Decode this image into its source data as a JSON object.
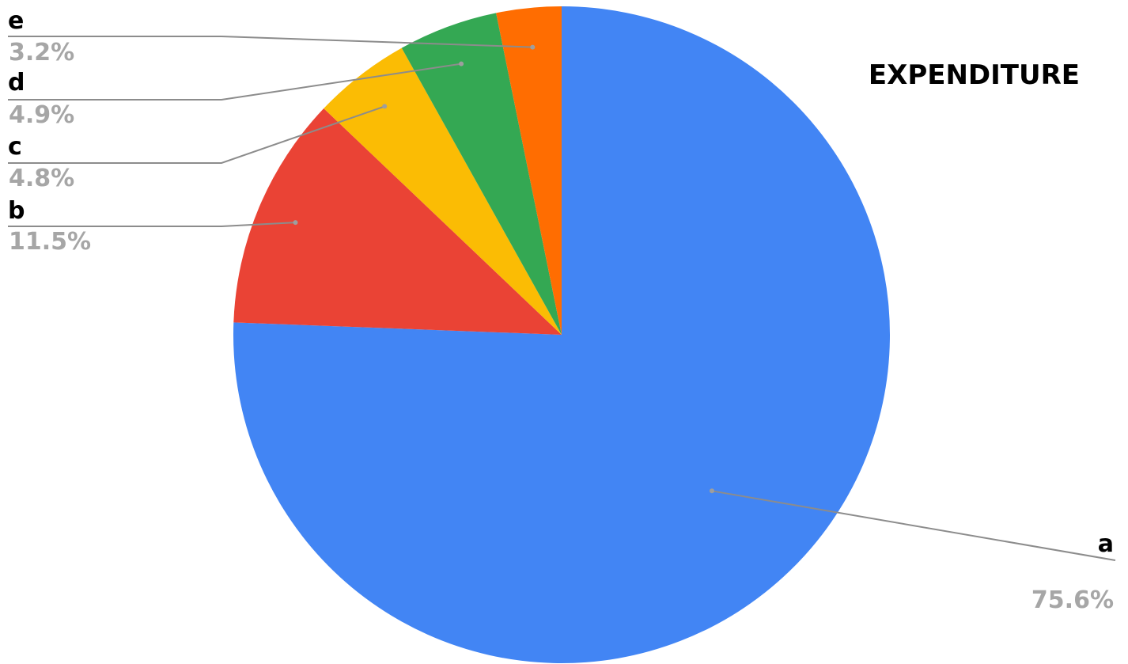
{
  "chart_data": {
    "type": "pie",
    "title": "EXPENDITURE",
    "start_angle_deg": 0,
    "direction": "clockwise",
    "slices": [
      {
        "label": "a",
        "value": 75.6,
        "pct_label": "75.6%",
        "color": "#4285f4"
      },
      {
        "label": "b",
        "value": 11.5,
        "pct_label": "11.5%",
        "color": "#ea4335"
      },
      {
        "label": "c",
        "value": 4.8,
        "pct_label": "4.8%",
        "color": "#fbbc04"
      },
      {
        "label": "d",
        "value": 4.9,
        "pct_label": "4.9%",
        "color": "#34a853"
      },
      {
        "label": "e",
        "value": 3.2,
        "pct_label": "3.2%",
        "color": "#ff6d01"
      }
    ],
    "legend": "none",
    "label_position": "outside-with-leader-lines"
  }
}
